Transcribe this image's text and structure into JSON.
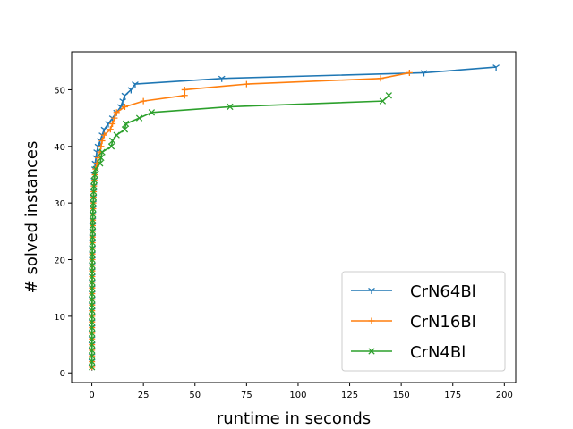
{
  "chart_data": {
    "type": "line",
    "xlabel": "runtime in seconds",
    "ylabel": "# solved instances",
    "xlim": [
      -9.8,
      205.5
    ],
    "ylim": [
      -1.7,
      56.7
    ],
    "xticks": [
      0,
      25,
      50,
      75,
      100,
      125,
      150,
      175,
      200
    ],
    "yticks": [
      0,
      10,
      20,
      30,
      40,
      50
    ],
    "grid": false,
    "legend_position": "bottom-right",
    "series": [
      {
        "name": "CrN64Bl",
        "color": "#1f77b4",
        "marker": "tri_down",
        "x": [
          0.05,
          0.05,
          0.06,
          0.06,
          0.07,
          0.07,
          0.08,
          0.08,
          0.09,
          0.1,
          0.1,
          0.11,
          0.12,
          0.13,
          0.14,
          0.15,
          0.16,
          0.18,
          0.2,
          0.22,
          0.24,
          0.27,
          0.3,
          0.33,
          0.36,
          0.4,
          0.45,
          0.5,
          0.6,
          0.7,
          0.8,
          0.9,
          1.0,
          1.1,
          1.2,
          1.4,
          1.6,
          2.0,
          2.4,
          3.0,
          4.0,
          5.0,
          6.0,
          8.0,
          10.0,
          12.0,
          14.0,
          15.0,
          16.0,
          19.0,
          21.0,
          63.0,
          161.0,
          196.0
        ],
        "y": [
          1,
          2,
          3,
          4,
          5,
          6,
          7,
          8,
          9,
          10,
          11,
          12,
          13,
          14,
          15,
          16,
          17,
          18,
          19,
          20,
          21,
          22,
          23,
          24,
          25,
          26,
          27,
          28,
          29,
          30,
          31,
          32,
          33,
          34,
          35,
          36,
          37,
          38,
          39,
          40,
          41,
          42,
          43,
          44,
          45,
          46,
          47,
          48,
          49,
          50,
          51,
          52,
          53,
          54
        ]
      },
      {
        "name": "CrN16Bl",
        "color": "#ff7f0e",
        "marker": "plus",
        "x": [
          0.05,
          0.05,
          0.06,
          0.06,
          0.07,
          0.07,
          0.08,
          0.08,
          0.09,
          0.1,
          0.1,
          0.11,
          0.12,
          0.13,
          0.14,
          0.15,
          0.16,
          0.18,
          0.2,
          0.22,
          0.24,
          0.27,
          0.3,
          0.33,
          0.36,
          0.4,
          0.45,
          0.5,
          0.6,
          0.7,
          0.8,
          0.9,
          1.0,
          1.2,
          1.5,
          1.8,
          2.5,
          3.0,
          4.0,
          4.5,
          5.0,
          6.0,
          9.0,
          10.0,
          11.0,
          12.0,
          16.0,
          25.0,
          45.0,
          45.0,
          75.0,
          140.0,
          154.0
        ],
        "y": [
          1,
          2,
          3,
          4,
          5,
          6,
          7,
          8,
          9,
          10,
          11,
          12,
          13,
          14,
          15,
          16,
          17,
          18,
          19,
          20,
          21,
          22,
          23,
          24,
          25,
          26,
          27,
          28,
          29,
          30,
          31,
          32,
          33,
          34,
          35,
          36,
          37,
          38,
          39,
          40,
          41,
          42,
          43,
          44,
          45,
          46,
          47,
          48,
          49,
          50,
          51,
          52,
          53
        ]
      },
      {
        "name": "CrN4Bl",
        "color": "#2ca02c",
        "marker": "x",
        "x": [
          0.05,
          0.05,
          0.06,
          0.06,
          0.07,
          0.07,
          0.08,
          0.08,
          0.09,
          0.1,
          0.1,
          0.11,
          0.12,
          0.13,
          0.14,
          0.15,
          0.16,
          0.18,
          0.2,
          0.22,
          0.24,
          0.27,
          0.3,
          0.33,
          0.36,
          0.4,
          0.45,
          0.5,
          0.6,
          0.7,
          0.8,
          0.9,
          1.0,
          1.2,
          1.5,
          2.0,
          4.0,
          4.5,
          5.0,
          9.5,
          10.0,
          12.0,
          16.0,
          16.5,
          23.0,
          29.0,
          67.0,
          141.0,
          144.0
        ],
        "y": [
          1,
          2,
          3,
          4,
          5,
          6,
          7,
          8,
          9,
          10,
          11,
          12,
          13,
          14,
          15,
          16,
          17,
          18,
          19,
          20,
          21,
          22,
          23,
          24,
          25,
          26,
          27,
          28,
          29,
          30,
          31,
          32,
          33,
          34,
          35,
          36,
          37,
          38,
          39,
          40,
          41,
          42,
          43,
          44,
          45,
          46,
          47,
          48,
          49
        ]
      }
    ]
  }
}
